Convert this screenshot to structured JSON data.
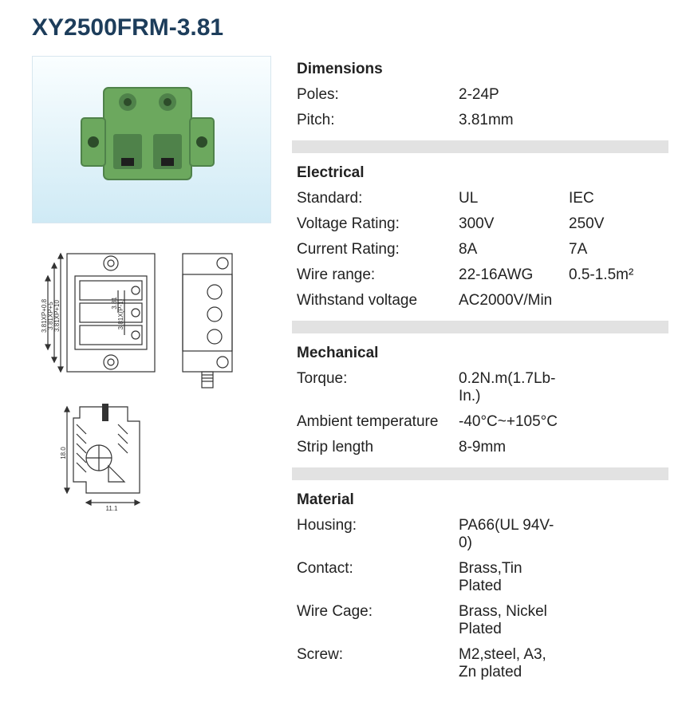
{
  "title": "XY2500FRM-3.81",
  "colors": {
    "title": "#1d3d5b",
    "text": "#222222",
    "divider": "#e2e2e2",
    "photo_bg_top": "#fafeff",
    "photo_bg_bot": "#cfeaf5",
    "connector_green": "#6ca85e",
    "connector_green_dark": "#4f824a",
    "drawing_stroke": "#333333"
  },
  "sections": [
    {
      "heading": "Dimensions",
      "rows": [
        {
          "label": "Poles:",
          "v1": "2-24P",
          "v2": ""
        },
        {
          "label": "Pitch:",
          "v1": "3.81mm",
          "v2": ""
        }
      ]
    },
    {
      "heading": "Electrical",
      "rows": [
        {
          "label": "Standard:",
          "v1": "UL",
          "v2": "IEC"
        },
        {
          "label": "Voltage Rating:",
          "v1": "300V",
          "v2": "250V"
        },
        {
          "label": "Current Rating:",
          "v1": "8A",
          "v2": "7A"
        },
        {
          "label": "Wire range:",
          "v1": "22-16AWG",
          "v2": "0.5-1.5m²"
        },
        {
          "label": "Withstand voltage",
          "v1": "AC2000V/Min",
          "v2": ""
        }
      ]
    },
    {
      "heading": "Mechanical",
      "rows": [
        {
          "label": "Torque:",
          "v1": "0.2N.m(1.7Lb-In.)",
          "v2": ""
        },
        {
          "label": "Ambient temperature",
          "v1": "-40°C~+105°C",
          "v2": ""
        },
        {
          "label": "Strip length",
          "v1": "8-9mm",
          "v2": ""
        }
      ]
    },
    {
      "heading": "Material",
      "rows": [
        {
          "label": "Housing:",
          "v1": "PA66(UL 94V-0)",
          "v2": ""
        },
        {
          "label": "Contact:",
          "v1": "Brass,Tin Plated",
          "v2": ""
        },
        {
          "label": "Wire Cage:",
          "v1": "Brass, Nickel Plated",
          "v2": ""
        },
        {
          "label": "Screw:",
          "v1": "M2,steel, A3,  Zn plated",
          "v2": ""
        }
      ]
    }
  ],
  "drawing_labels": {
    "left1": "3.81XP+10",
    "left2": "3.81XP+5",
    "left3": "3.81XP+0.8",
    "inner1": "3.81",
    "inner2": "3.81X(P-1)",
    "side_h": "18.0",
    "side_w": "11.1"
  },
  "fontsizes": {
    "title": 30,
    "body": 19,
    "drawing_label": 8
  }
}
